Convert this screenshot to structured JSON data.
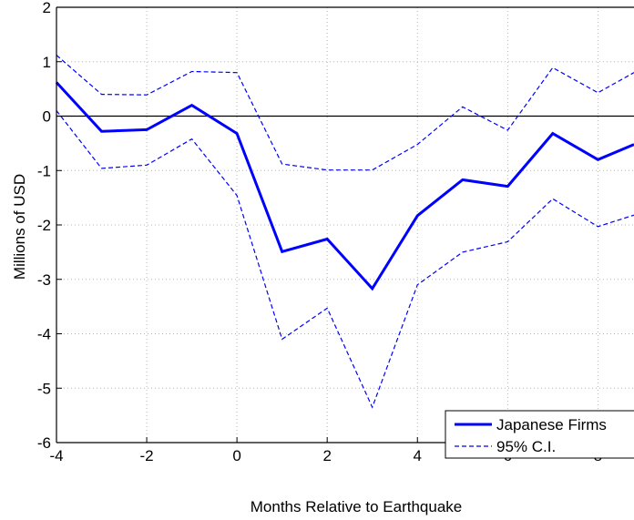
{
  "chart_data": {
    "type": "line",
    "title": "",
    "xlabel": "Months Relative to Earthquake",
    "ylabel": "Millions of USD",
    "xlim": [
      -4,
      8.8
    ],
    "ylim": [
      -6,
      2
    ],
    "xticks": [
      -4,
      -2,
      0,
      2,
      4,
      6,
      8
    ],
    "yticks": [
      -6,
      -5,
      -4,
      -3,
      -2,
      -1,
      0,
      1,
      2
    ],
    "grid": true,
    "legend_position": "bottom-right",
    "zero_line": 0,
    "x": [
      -4,
      -3,
      -2,
      -1,
      0,
      1,
      2,
      3,
      4,
      5,
      6,
      7,
      8,
      8.8
    ],
    "series": [
      {
        "name": "Japanese Firms",
        "style": "solid",
        "color": "#0000ff",
        "values": [
          0.62,
          -0.28,
          -0.25,
          0.2,
          -0.32,
          -2.49,
          -2.26,
          -3.17,
          -1.83,
          -1.17,
          -1.29,
          -0.32,
          -0.8,
          -0.52
        ]
      },
      {
        "name": "95% C.I.",
        "style": "dashed",
        "color": "#0000ff",
        "values": [
          1.12,
          0.4,
          0.39,
          0.82,
          0.8,
          -0.88,
          -0.99,
          -0.99,
          -0.52,
          0.17,
          -0.26,
          0.89,
          0.43,
          0.8
        ]
      },
      {
        "name": "",
        "style": "dashed",
        "color": "#0000ff",
        "values": [
          0.1,
          -0.96,
          -0.9,
          -0.42,
          -1.46,
          -4.1,
          -3.53,
          -5.35,
          -3.1,
          -2.5,
          -2.31,
          -1.52,
          -2.03,
          -1.82
        ]
      }
    ]
  },
  "legend": {
    "items": [
      {
        "label": "Japanese Firms",
        "style": "solid"
      },
      {
        "label": "95% C.I.",
        "style": "dashed"
      }
    ]
  }
}
